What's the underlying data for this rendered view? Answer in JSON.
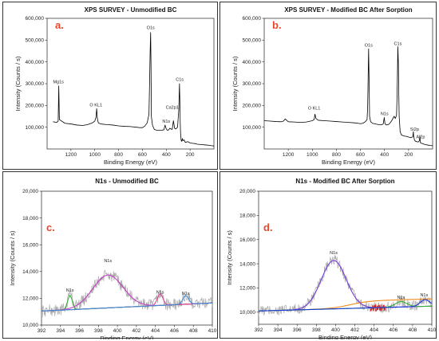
{
  "chart_data": [
    {
      "id": "a",
      "type": "line",
      "panel_label": "a.",
      "title": "XPS SURVEY - Unmodified BC",
      "xlabel": "Binding Energy (eV)",
      "ylabel": "Intensity (Counts / s)",
      "xlim": [
        1400,
        0
      ],
      "ylim": [
        0,
        600000
      ],
      "xticks": [
        1200,
        1000,
        800,
        600,
        400,
        200
      ],
      "yticks": [
        100000,
        200000,
        300000,
        400000,
        500000,
        600000
      ],
      "ytick_labels": [
        "100,000",
        "200,000",
        "300,000",
        "400,000",
        "500,000",
        "600,000"
      ],
      "x_reversed": true,
      "series": [
        {
          "color": "#000000",
          "x": [
            1350,
            1320,
            1307,
            1302,
            1297,
            1250,
            1200,
            1150,
            1100,
            1060,
            1020,
            1000,
            990,
            984,
            978,
            970,
            950,
            900,
            850,
            800,
            750,
            700,
            650,
            620,
            600,
            580,
            560,
            545,
            540,
            535,
            531,
            528,
            525,
            515,
            500,
            480,
            460,
            440,
            420,
            410,
            400,
            390,
            380,
            370,
            360,
            350,
            345,
            340,
            330,
            320,
            305,
            295,
            289,
            286,
            283,
            280,
            275,
            270,
            265,
            260,
            250,
            240,
            220,
            200,
            180,
            160,
            140,
            120,
            100,
            80,
            60,
            40,
            20,
            0
          ],
          "y": [
            125000,
            122000,
            128000,
            290000,
            135000,
            118000,
            115000,
            110000,
            108000,
            112000,
            120000,
            128000,
            145000,
            185000,
            140000,
            120000,
            115000,
            112000,
            110000,
            106000,
            104000,
            103000,
            100000,
            98000,
            98000,
            105000,
            120000,
            160000,
            300000,
            450000,
            535000,
            390000,
            150000,
            108000,
            90000,
            86000,
            85000,
            86000,
            88000,
            110000,
            92000,
            86000,
            88000,
            95000,
            92000,
            90000,
            110000,
            130000,
            95000,
            92000,
            100000,
            180000,
            300000,
            230000,
            130000,
            75000,
            40000,
            35000,
            48000,
            38000,
            42000,
            30000,
            34000,
            28000,
            26000,
            25000,
            22000,
            21000,
            20000,
            19000,
            18000,
            17000,
            15000,
            14000
          ]
        }
      ],
      "annotations": [
        {
          "text": "Mg1s",
          "x": 1305,
          "y": 302000
        },
        {
          "text": "O KL1",
          "x": 990,
          "y": 195000
        },
        {
          "text": "O1s",
          "x": 531,
          "y": 550000
        },
        {
          "text": "N1s",
          "x": 400,
          "y": 120000
        },
        {
          "text": "Ca2p1",
          "x": 350,
          "y": 185000
        },
        {
          "text": "C1s",
          "x": 287,
          "y": 312000
        }
      ]
    },
    {
      "id": "b",
      "type": "line",
      "panel_label": "b.",
      "title": "XPS SURVEY - Modified BC After Sorption",
      "xlabel": "Binding Energy (eV)",
      "ylabel": "Intensity (Counts / s)",
      "xlim": [
        1400,
        0
      ],
      "ylim": [
        0,
        600000
      ],
      "xticks": [
        1200,
        1000,
        800,
        600,
        400,
        200
      ],
      "yticks": [
        100000,
        200000,
        300000,
        400000,
        500000,
        600000
      ],
      "ytick_labels": [
        "100,000",
        "200,000",
        "300,000",
        "400,000",
        "500,000",
        "600,000"
      ],
      "x_reversed": true,
      "series": [
        {
          "color": "#000000",
          "x": [
            1400,
            1350,
            1300,
            1260,
            1240,
            1225,
            1210,
            1200,
            1150,
            1100,
            1050,
            1000,
            985,
            978,
            970,
            950,
            900,
            850,
            800,
            750,
            700,
            650,
            620,
            600,
            580,
            560,
            545,
            540,
            536,
            532,
            528,
            524,
            515,
            500,
            450,
            420,
            410,
            402,
            397,
            395,
            390,
            380,
            370,
            360,
            340,
            320,
            310,
            300,
            295,
            289,
            285,
            282,
            278,
            270,
            260,
            240,
            220,
            200,
            180,
            165,
            160,
            158,
            155,
            150,
            140,
            120,
            110,
            106,
            103,
            100,
            80,
            60,
            40,
            20,
            0
          ],
          "y": [
            130000,
            128000,
            126000,
            125000,
            128000,
            138000,
            130000,
            125000,
            124000,
            122000,
            124000,
            130000,
            135000,
            160000,
            140000,
            132000,
            130000,
            128000,
            126000,
            124000,
            122000,
            120000,
            118000,
            116000,
            118000,
            125000,
            135000,
            190000,
            330000,
            460000,
            320000,
            150000,
            125000,
            118000,
            112000,
            112000,
            116000,
            145000,
            120000,
            115000,
            112000,
            110000,
            112000,
            115000,
            130000,
            150000,
            140000,
            155000,
            250000,
            470000,
            400000,
            280000,
            150000,
            80000,
            65000,
            60000,
            58000,
            55000,
            52000,
            56000,
            80000,
            60000,
            52000,
            40000,
            35000,
            32000,
            38000,
            60000,
            35000,
            28000,
            24000,
            20000,
            18000,
            16000,
            15000
          ]
        }
      ],
      "annotations": [
        {
          "text": "O1s",
          "x": 532,
          "y": 470000
        },
        {
          "text": "C1s",
          "x": 289,
          "y": 478000
        },
        {
          "text": "O KL1",
          "x": 985,
          "y": 182000
        },
        {
          "text": "N1s",
          "x": 400,
          "y": 155000
        },
        {
          "text": "Si2p",
          "x": 150,
          "y": 85000
        },
        {
          "text": "Al2p",
          "x": 100,
          "y": 50000
        }
      ]
    },
    {
      "id": "c",
      "type": "line",
      "panel_label": "c.",
      "title": "N1s - Unmodified BC",
      "xlabel": "Binding Energy (eV)",
      "ylabel": "Intensity (Counts / s)",
      "xlim": [
        392,
        410
      ],
      "ylim": [
        10000,
        20000
      ],
      "xticks": [
        392,
        394,
        396,
        398,
        400,
        402,
        404,
        406,
        408,
        410
      ],
      "yticks": [
        10000,
        12000,
        14000,
        16000,
        18000,
        20000
      ],
      "ytick_labels": [
        "10,000",
        "12,000",
        "14,000",
        "16,000",
        "18,000",
        "20,000"
      ],
      "x_reversed": false,
      "series": [
        {
          "name": "raw",
          "color": "#a8a8a8",
          "generator": "noisy",
          "baseline": [
            11050,
            11650
          ],
          "peaks": [
            [
              395.0,
              1050,
              0.25
            ],
            [
              399.0,
              2450,
              1.6
            ],
            [
              404.5,
              850,
              0.3
            ],
            [
              407.2,
              650,
              0.3
            ]
          ],
          "noise": 450
        },
        {
          "name": "baseline",
          "color": "#f08a1a",
          "generator": "linear",
          "baseline": [
            11050,
            11650
          ]
        },
        {
          "name": "peak1",
          "color": "#33b233",
          "generator": "peak",
          "baseline": [
            11050,
            11650
          ],
          "peak": [
            395.0,
            1050,
            0.25
          ]
        },
        {
          "name": "peak2",
          "color": "#c640c6",
          "generator": "peak",
          "baseline": [
            11050,
            11650
          ],
          "peak": [
            399.0,
            2450,
            1.6
          ]
        },
        {
          "name": "peak3",
          "color": "#e0409a",
          "generator": "peak",
          "baseline": [
            11050,
            11650
          ],
          "peak": [
            404.5,
            850,
            0.3
          ]
        },
        {
          "name": "peak4",
          "color": "#3a8bd8",
          "generator": "peak",
          "baseline": [
            11050,
            11650
          ],
          "peak": [
            407.2,
            650,
            0.3
          ]
        }
      ],
      "annotations": [
        {
          "text": "N1s",
          "x": 395.0,
          "y": 12500
        },
        {
          "text": "N1s",
          "x": 399.0,
          "y": 14700
        },
        {
          "text": "N1s",
          "x": 404.5,
          "y": 12350
        },
        {
          "text": "N1s",
          "x": 407.2,
          "y": 12250
        }
      ]
    },
    {
      "id": "d",
      "type": "line",
      "panel_label": "d.",
      "title": "N1s - Modified BC After Sorption",
      "xlabel": "Binding Energy (eV)",
      "ylabel": "Intensity (Counts / s)",
      "xlim": [
        392,
        410
      ],
      "ylim": [
        9000,
        20000
      ],
      "xticks": [
        392,
        394,
        396,
        398,
        400,
        402,
        404,
        406,
        408,
        410
      ],
      "yticks": [
        10000,
        12000,
        14000,
        16000,
        18000,
        20000
      ],
      "ytick_labels": [
        "10,000",
        "12,000",
        "14,000",
        "16,000",
        "18,000",
        "20,000"
      ],
      "x_reversed": false,
      "series": [
        {
          "name": "raw",
          "color": "#a8a8a8",
          "generator": "noisy",
          "baseline": [
            10100,
            10500
          ],
          "peaks": [
            [
              399.8,
              4000,
              1.3
            ],
            [
              406.8,
              450,
              0.6
            ],
            [
              409.3,
              550,
              0.5
            ]
          ],
          "noise": 450
        },
        {
          "name": "raw-red",
          "color": "#e02020",
          "generator": "noisy-segment",
          "range": [
            403.6,
            405.2
          ],
          "baseline": [
            10100,
            10500
          ],
          "peaks": [],
          "noise": 300
        },
        {
          "name": "baseline",
          "color": "#f08a1a",
          "generator": "sigmoid",
          "baseline": [
            10100,
            10500
          ],
          "step": [
            401.5,
            600,
            1.0
          ]
        },
        {
          "name": "peak1",
          "color": "#7a3ad8",
          "generator": "peak",
          "baseline": [
            10100,
            10500
          ],
          "peak": [
            399.8,
            4000,
            1.3
          ]
        },
        {
          "name": "peak2",
          "color": "#33b233",
          "generator": "peak",
          "baseline": [
            10100,
            10500
          ],
          "peak": [
            406.8,
            450,
            0.6
          ]
        },
        {
          "name": "peak3",
          "color": "#1a3ad8",
          "generator": "peak",
          "baseline": [
            10100,
            10500
          ],
          "peak": [
            409.3,
            550,
            0.5
          ]
        }
      ],
      "annotations": [
        {
          "text": "N1s",
          "x": 399.8,
          "y": 14800
        },
        {
          "text": "N1s",
          "x": 406.8,
          "y": 11100
        },
        {
          "text": "N1s",
          "x": 409.2,
          "y": 11300
        }
      ]
    }
  ]
}
